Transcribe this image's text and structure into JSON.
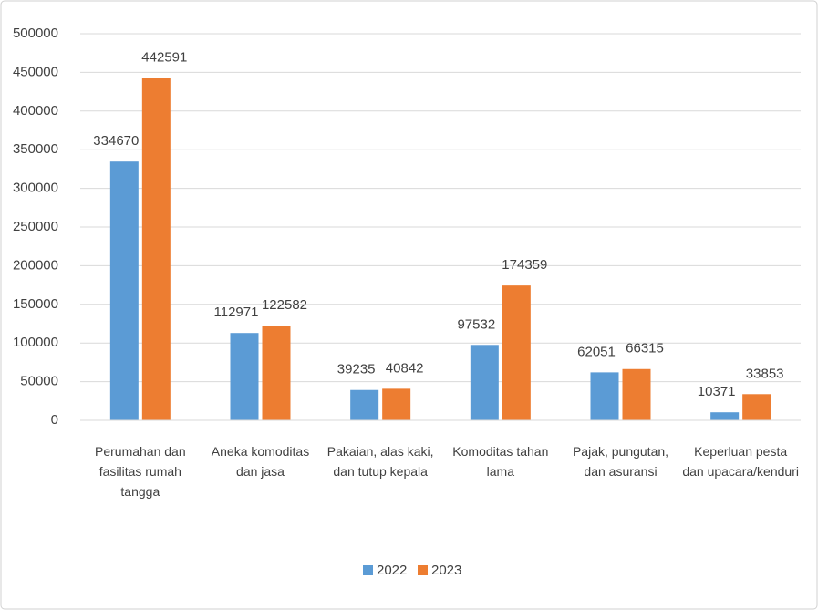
{
  "chart_data": {
    "type": "bar",
    "categories": [
      "Perumahan dan fasilitas rumah tangga",
      "Aneka komoditas dan jasa",
      "Pakaian, alas kaki, dan tutup kepala",
      "Komoditas tahan lama",
      "Pajak, pungutan, dan asuransi",
      "Keperluan pesta dan upacara/kenduri"
    ],
    "series": [
      {
        "name": "2022",
        "color": "#5b9bd5",
        "values": [
          334670,
          112971,
          39235,
          97532,
          62051,
          10371
        ]
      },
      {
        "name": "2023",
        "color": "#ed7d31",
        "values": [
          442591,
          122582,
          40842,
          174359,
          66315,
          33853
        ]
      }
    ],
    "ylim": [
      0,
      500000
    ],
    "yticks": [
      0,
      50000,
      100000,
      150000,
      200000,
      250000,
      300000,
      350000,
      400000,
      450000,
      500000
    ],
    "grid": true,
    "legend": "bottom"
  }
}
